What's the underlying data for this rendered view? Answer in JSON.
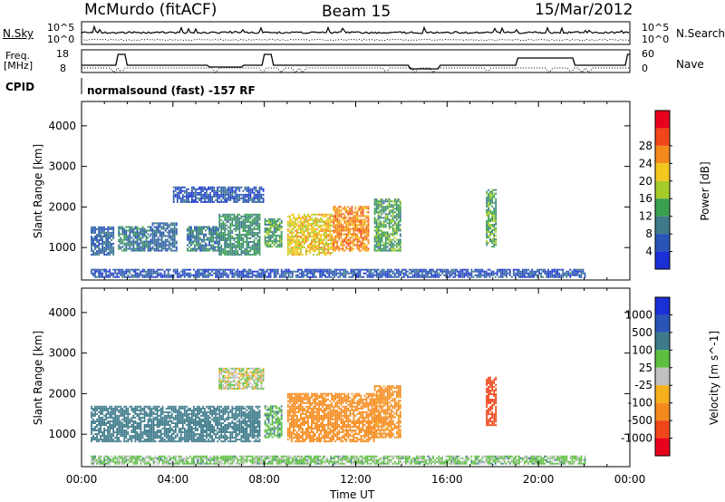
{
  "header": {
    "station": "McMurdo (fitACF)",
    "beam": "Beam 15",
    "date": "15/Mar/2012"
  },
  "status_panels": {
    "noise_left_label": "N.Sky",
    "noise_right_label": "N.Search",
    "noise_tick_top": "10^5",
    "noise_tick_bottom": "10^0",
    "freq_label_line1": "Freq.",
    "freq_label_line2": "[MHz]",
    "freq_tick_top": "18",
    "freq_tick_bottom": "8",
    "nave_label": "Nave",
    "nave_tick_top": "60",
    "nave_tick_bottom": "0",
    "cpid_label": "CPID",
    "cpid_value": "normalsound (fast) -157 RF"
  },
  "chart_data": [
    {
      "type": "heatmap",
      "name": "power",
      "ylabel": "Slant Range [km]",
      "ylim": [
        200,
        4600
      ],
      "yticks": [
        "1000",
        "2000",
        "3000",
        "4000"
      ],
      "xlim": [
        0,
        24
      ],
      "colorbar_label": "Power [dB]",
      "colorbar_ticks": [
        "4",
        "8",
        "12",
        "16",
        "20",
        "24",
        "28"
      ],
      "colors": [
        "#1b2fd6",
        "#2a54b8",
        "#3d7a8a",
        "#3aa050",
        "#a6cc2a",
        "#f2c81e",
        "#f58a1c",
        "#f0461a",
        "#e8001c"
      ],
      "regions": [
        {
          "t0": 0.4,
          "t1": 1.4,
          "r0": 800,
          "r1": 1500,
          "level": 8
        },
        {
          "t0": 1.6,
          "t1": 3.0,
          "r0": 900,
          "r1": 1500,
          "level": 10
        },
        {
          "t0": 3.0,
          "t1": 4.2,
          "r0": 900,
          "r1": 1600,
          "level": 8
        },
        {
          "t0": 4.6,
          "t1": 6.0,
          "r0": 900,
          "r1": 1500,
          "level": 10
        },
        {
          "t0": 6.0,
          "t1": 7.8,
          "r0": 800,
          "r1": 1800,
          "level": 12
        },
        {
          "t0": 8.0,
          "t1": 8.8,
          "r0": 1000,
          "r1": 1700,
          "level": 14
        },
        {
          "t0": 9.0,
          "t1": 11.0,
          "r0": 800,
          "r1": 1800,
          "level": 22
        },
        {
          "t0": 11.0,
          "t1": 12.6,
          "r0": 900,
          "r1": 2000,
          "level": 26
        },
        {
          "t0": 12.8,
          "t1": 14.0,
          "r0": 900,
          "r1": 2200,
          "level": 14
        },
        {
          "t0": 17.7,
          "t1": 18.1,
          "r0": 1000,
          "r1": 2400,
          "level": 14
        },
        {
          "t0": 4.0,
          "t1": 8.0,
          "r0": 2100,
          "r1": 2500,
          "level": 6
        },
        {
          "t0": 0.4,
          "t1": 22.0,
          "r0": 250,
          "r1": 450,
          "level": 6
        }
      ]
    },
    {
      "type": "heatmap",
      "name": "velocity",
      "ylabel": "Slant Range [km]",
      "xlabel": "Time UT",
      "ylim": [
        200,
        4600
      ],
      "yticks": [
        "1000",
        "2000",
        "3000",
        "4000"
      ],
      "xlim": [
        0,
        24
      ],
      "xticks": [
        "00:00",
        "04:00",
        "08:00",
        "12:00",
        "16:00",
        "20:00",
        "00:00"
      ],
      "colorbar_label": "Velocity [m s^-1]",
      "colorbar_ticks": [
        "1000",
        "500",
        "100",
        "25",
        "-25",
        "-100",
        "-500",
        "-1000"
      ],
      "colors": [
        "#1b2fd6",
        "#2a54b8",
        "#3d7a8a",
        "#5cbf40",
        "#c0c0c0",
        "#f5b01c",
        "#f58a1c",
        "#f0461a",
        "#e8001c"
      ],
      "regions": [
        {
          "t0": 0.4,
          "t1": 7.8,
          "r0": 800,
          "r1": 1700,
          "level": 200
        },
        {
          "t0": 8.0,
          "t1": 8.8,
          "r0": 900,
          "r1": 1700,
          "level": 80
        },
        {
          "t0": 9.0,
          "t1": 12.8,
          "r0": 800,
          "r1": 2000,
          "level": -200
        },
        {
          "t0": 12.8,
          "t1": 14.0,
          "r0": 900,
          "r1": 2200,
          "level": -150
        },
        {
          "t0": 17.7,
          "t1": 18.1,
          "r0": 1200,
          "r1": 2400,
          "level": -700
        },
        {
          "t0": 6.0,
          "t1": 8.0,
          "r0": 2100,
          "r1": 2600,
          "level": 0
        },
        {
          "t0": 0.4,
          "t1": 22.0,
          "r0": 250,
          "r1": 450,
          "level": 50
        }
      ]
    }
  ]
}
